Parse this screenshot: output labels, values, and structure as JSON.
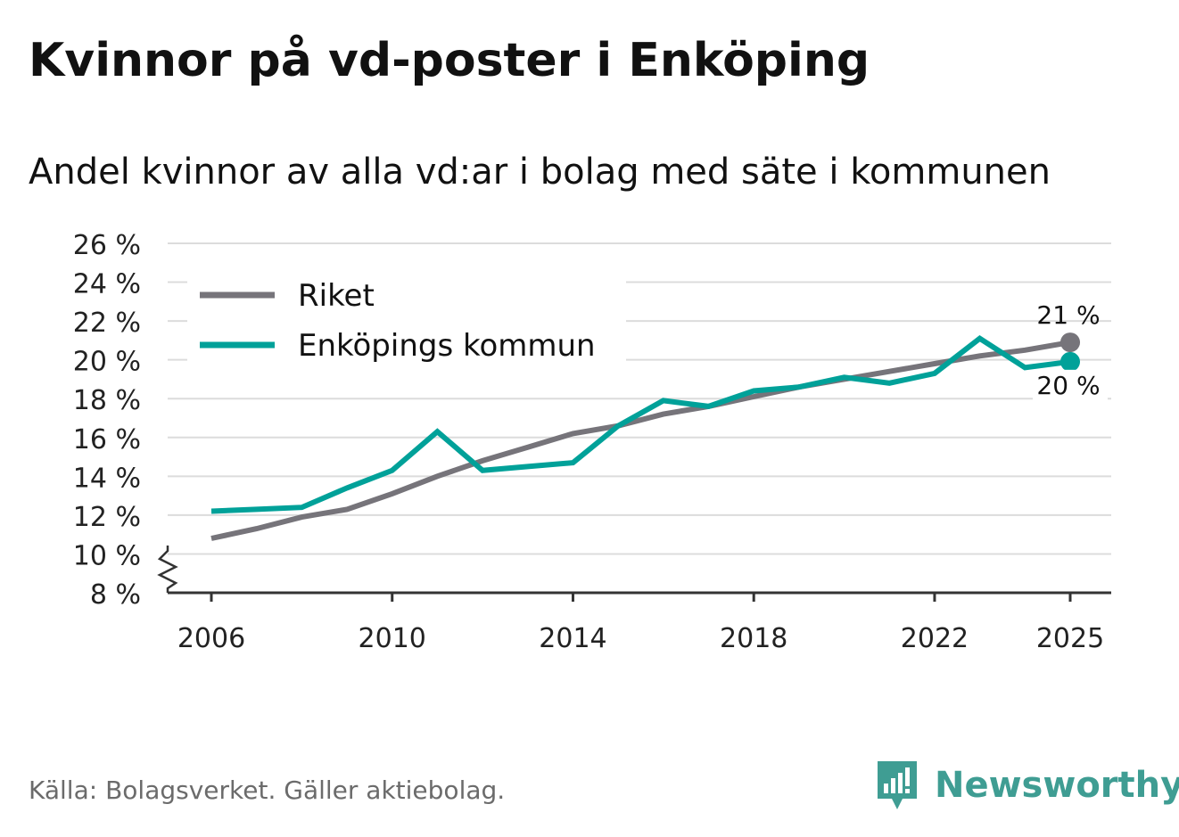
{
  "title": "Kvinnor på vd-poster i Enköping",
  "subtitle": "Andel kvinnor av alla vd:ar i bolag med säte i kommunen",
  "source": "Källa: Bolagsverket. Gäller aktiebolag.",
  "brand": "Newsworthy",
  "colors": {
    "riket": "#76747a",
    "enkoping": "#00a199",
    "grid": "#dcdcdc",
    "axis": "#333333",
    "brand": "#3f9d93"
  },
  "chart_data": {
    "type": "line",
    "title": "Kvinnor på vd-poster i Enköping",
    "subtitle": "Andel kvinnor av alla vd:ar i bolag med säte i kommunen",
    "xlabel": "",
    "ylabel": "",
    "xlim": [
      2006,
      2025
    ],
    "ylim": [
      8,
      26
    ],
    "axis_break": true,
    "grid": true,
    "legend_position": "top-left",
    "yticks": [
      8,
      10,
      12,
      14,
      16,
      18,
      20,
      22,
      24,
      26
    ],
    "ytick_labels": [
      "8 %",
      "10 %",
      "12 %",
      "14 %",
      "16 %",
      "18 %",
      "20 %",
      "22 %",
      "24 %",
      "26 %"
    ],
    "xticks": [
      2006,
      2010,
      2014,
      2018,
      2022,
      2025
    ],
    "xtick_labels": [
      "2006",
      "2010",
      "2014",
      "2018",
      "2022",
      "2025"
    ],
    "x": [
      2006,
      2007,
      2008,
      2009,
      2010,
      2011,
      2012,
      2013,
      2014,
      2015,
      2016,
      2017,
      2018,
      2019,
      2020,
      2021,
      2022,
      2023,
      2024,
      2025
    ],
    "series": [
      {
        "name": "Riket",
        "color": "#76747a",
        "values": [
          10.8,
          11.3,
          11.9,
          12.3,
          13.1,
          14.0,
          14.8,
          15.5,
          16.2,
          16.6,
          17.2,
          17.6,
          18.1,
          18.6,
          19.0,
          19.4,
          19.8,
          20.2,
          20.5,
          20.9
        ],
        "end_label": "21 %"
      },
      {
        "name": "Enköpings kommun",
        "color": "#00a199",
        "values": [
          12.2,
          12.3,
          12.4,
          13.4,
          14.3,
          16.3,
          14.3,
          14.5,
          14.7,
          16.6,
          17.9,
          17.6,
          18.4,
          18.6,
          19.1,
          18.8,
          19.3,
          21.1,
          19.6,
          19.9
        ],
        "end_label": "20 %"
      }
    ]
  }
}
